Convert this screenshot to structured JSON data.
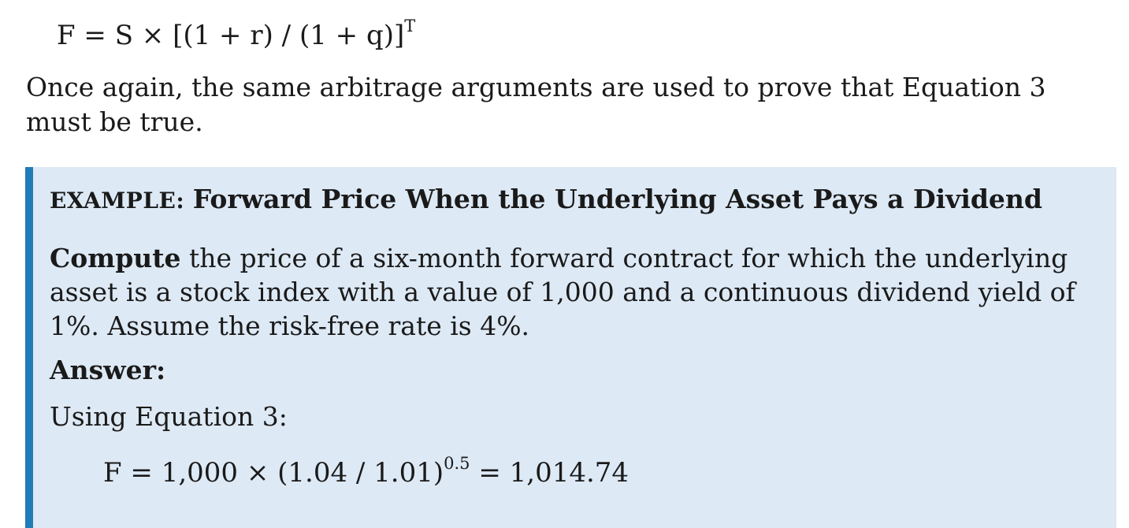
{
  "top_formula": {
    "main": "F = S × [(1 + r) / (1 + q)]",
    "exponent": "T"
  },
  "paragraph": "Once again, the same arbitrage arguments are used to prove that Equation 3 must be true.",
  "example": {
    "label": "EXAMPLE:",
    "title": "Forward Price When the Underlying Asset Pays a Dividend",
    "question_lead": "Compute",
    "question_rest": " the price of a six-month forward contract for which the underlying asset is a stock index with a value of 1,000 and a continuous dividend yield of 1%. Assume the risk-free rate is 4%.",
    "answer_label": "Answer:",
    "using_text": "Using Equation 3:",
    "formula": {
      "base": "F = 1,000 × (1.04 / 1.01)",
      "exponent": "0.5",
      "result": " = 1,014.74"
    }
  },
  "colors": {
    "box_background": "#dde9f5",
    "box_accent_bar": "#1f7cb6",
    "text": "#1a1a1a"
  }
}
